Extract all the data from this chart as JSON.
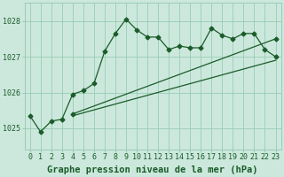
{
  "title": "Graphe pression niveau de la mer (hPa)",
  "background_color": "#cce8dc",
  "grid_color": "#99ccb8",
  "line_color": "#1a5c2a",
  "xlim_min": -0.5,
  "xlim_max": 23.5,
  "ylim_min": 1024.4,
  "ylim_max": 1028.5,
  "yticks": [
    1025,
    1026,
    1027,
    1028
  ],
  "xticks": [
    0,
    1,
    2,
    3,
    4,
    5,
    6,
    7,
    8,
    9,
    10,
    11,
    12,
    13,
    14,
    15,
    16,
    17,
    18,
    19,
    20,
    21,
    22,
    23
  ],
  "series1_x": [
    0,
    1,
    2,
    3,
    4,
    5,
    6,
    7,
    8,
    9,
    10,
    11,
    12,
    13,
    14,
    15,
    16,
    17,
    18,
    19,
    20,
    21,
    22,
    23
  ],
  "series1_y": [
    1025.35,
    1024.9,
    1025.2,
    1025.25,
    1025.95,
    1026.05,
    1026.25,
    1027.15,
    1027.65,
    1028.05,
    1027.75,
    1027.55,
    1027.55,
    1027.2,
    1027.3,
    1027.25,
    1027.25,
    1027.8,
    1027.6,
    1027.5,
    1027.65,
    1027.65,
    1027.2,
    1027.0
  ],
  "series2_x": [
    4,
    23
  ],
  "series2_y": [
    1025.4,
    1027.5
  ],
  "series3_x": [
    4,
    23
  ],
  "series3_y": [
    1025.35,
    1026.9
  ],
  "marker": "D",
  "marker_size": 2.5,
  "linewidth": 0.9,
  "title_fontsize": 7.5,
  "tick_fontsize": 6
}
